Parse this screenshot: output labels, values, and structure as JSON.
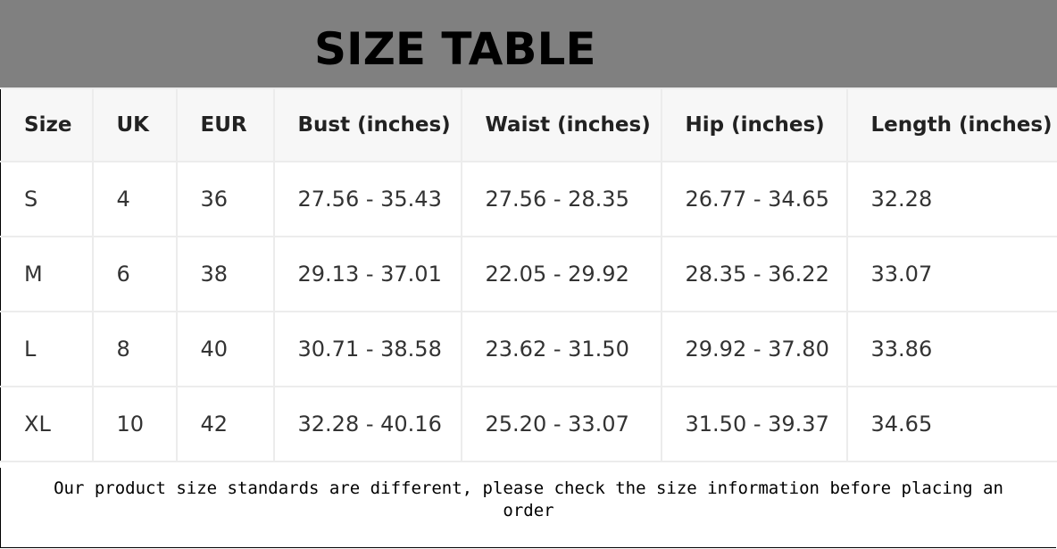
{
  "title": "SIZE TABLE",
  "table": {
    "headers": [
      "Size",
      "UK",
      "EUR",
      "Bust (inches)",
      "Waist (inches)",
      "Hip (inches)",
      "Length (inches)"
    ],
    "rows": [
      [
        "S",
        "4",
        "36",
        "27.56 - 35.43",
        "27.56 - 28.35",
        "26.77 - 34.65",
        "32.28"
      ],
      [
        "M",
        "6",
        "38",
        "29.13 - 37.01",
        "22.05 - 29.92",
        "28.35 - 36.22",
        "33.07"
      ],
      [
        "L",
        "8",
        "40",
        "30.71 - 38.58",
        "23.62 - 31.50",
        "29.92 - 37.80",
        "33.86"
      ],
      [
        "XL",
        "10",
        "42",
        "32.28 - 40.16",
        "25.20 - 33.07",
        "31.50 - 39.37",
        "34.65"
      ]
    ]
  },
  "note": "Our product size standards are different, please check the size information before placing an order",
  "colors": {
    "banner": "#808080",
    "header_bg": "#f7f7f7",
    "grid": "#ececec"
  }
}
